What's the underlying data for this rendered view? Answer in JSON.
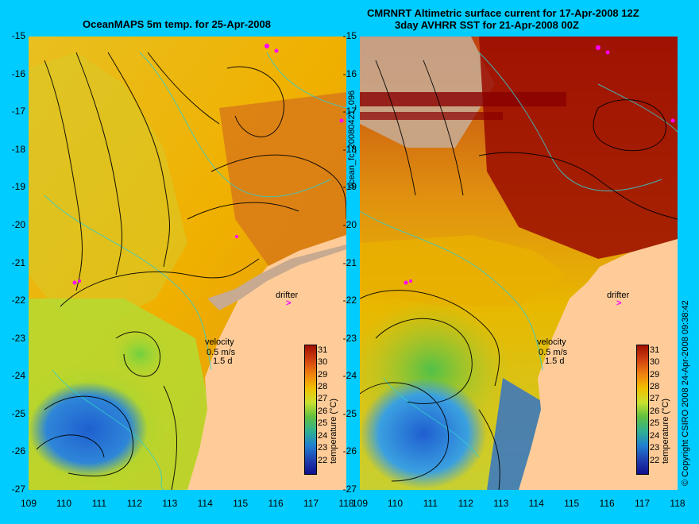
{
  "titles": {
    "left": "OceanMAPS 5m temp. for 25-Apr-2008",
    "right_line1": "CMRNRT Altimetric surface current for 17-Apr-2008 12Z",
    "right_line2": "3day AVHRR SST for 21-Apr-2008 00Z"
  },
  "axes": {
    "lat_ticks": [
      "-15",
      "-16",
      "-17",
      "-18",
      "-19",
      "-20",
      "-21",
      "-22",
      "-23",
      "-24",
      "-25",
      "-26",
      "-27"
    ],
    "lon_ticks": [
      "109",
      "110",
      "111",
      "112",
      "113",
      "114",
      "115",
      "116",
      "117",
      "118"
    ],
    "lat_range": [
      -27,
      -15
    ],
    "lon_range": [
      109,
      118
    ]
  },
  "legend": {
    "velocity_label": "velocity",
    "velocity_scale": "0.5 m/s",
    "velocity_time": "1.5 d",
    "drifter_label": "drifter",
    "colorbar_label": "temperature (°C)",
    "colorbar_ticks": [
      "31",
      "30",
      "29",
      "28",
      "27",
      "26",
      "25",
      "24",
      "23",
      "22"
    ],
    "colorbar_range": [
      21,
      31.5
    ]
  },
  "side_labels": {
    "middle": "ocean_fc_20080421_096",
    "right": "© Copyright CSIRO 2008   24-Apr-2008 09:38:42"
  },
  "colors": {
    "background": "#00ccff",
    "land": "#ffcc99",
    "land_grey": "#c8aa90",
    "drifter": "#ff00ff",
    "contour": "#33cccc",
    "warm": "#d86a10",
    "hot": "#9a0a00",
    "mid": "#f0b200",
    "cool": "#7ad03c",
    "cold": "#2a6fd0"
  }
}
